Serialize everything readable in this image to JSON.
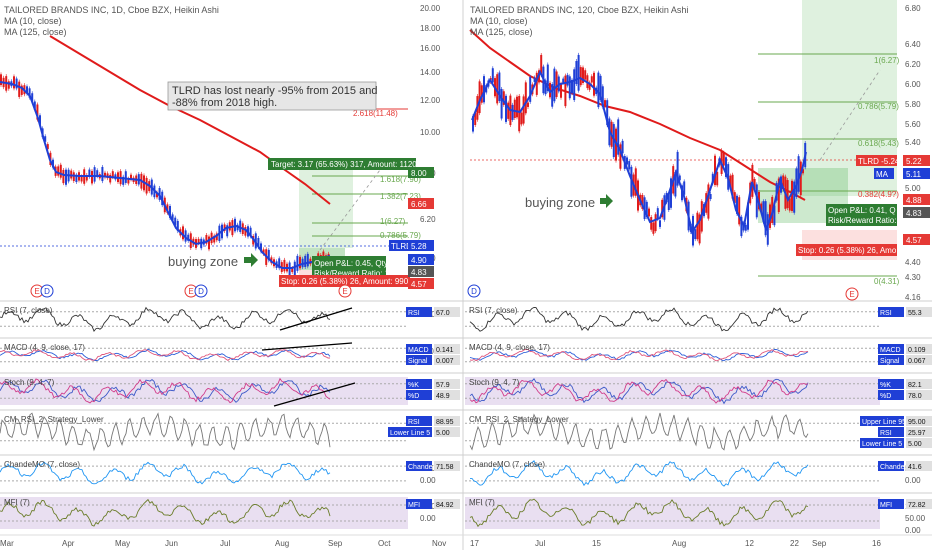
{
  "colors": {
    "ma_short": "#1f3fd6",
    "ma_long": "#e01b1b",
    "candle_up": "#1f3fd6",
    "candle_down": "#e01b1b",
    "target_zone": "#4caf50",
    "stop_zone": "#ef5350",
    "indicator_bg": "#e9dff1",
    "rsi_line": "#333333",
    "macd_line": "#2c5fd9",
    "signal_line": "#e0557a",
    "stoch_k": "#3c58c8",
    "stoch_d": "#d13b8a",
    "crsi_line": "#777777",
    "cmo_line": "#2196f3",
    "mfi_line": "#6b7d2a",
    "trend": "#000000",
    "label_green": "#2e7d32",
    "label_red": "#e53935",
    "label_blue": "#1f3fd6"
  },
  "left": {
    "title": "TAILORED BRANDS INC, 1D, Cboe BZX, Heikin Ashi",
    "legend": [
      "MA (10, close)",
      "MA (125, close)"
    ],
    "price_scale": [
      "20.00",
      "18.00",
      "16.00",
      "14.00",
      "12.00",
      "10.00",
      "8.00",
      "6.20",
      "4.20"
    ],
    "x_ticks": [
      "Mar",
      "Apr",
      "May",
      "Jun",
      "Jul",
      "Aug",
      "Sep",
      "Oct",
      "Nov"
    ],
    "annotation": "TLRD has lost nearly -95% from 2015 and -88% from 2018 high.",
    "buying_zone": "buying zone",
    "fib": [
      "2.618(11.48)",
      "1.618(7.90)",
      "1.382(7.23)",
      "1(6.27)",
      "0.786(5.79)"
    ],
    "target_label": "Target: 3.17 (65.63%) 317, Amount: 1120.4",
    "open_pl": "Open P&L: 0.45, Qty: 38",
    "rr": "Risk/Reward Ratio: 12.19",
    "stop_label": "Stop: 0.26 (5.38%) 26, Amount: 990.12",
    "price_tags": [
      {
        "text": "8.00",
        "color": "#2e7d32"
      },
      {
        "text": "6.66",
        "color": "#e53935"
      },
      {
        "text": "TLRD -59.86%",
        "color": "#1f3fd6"
      },
      {
        "text": "5.28",
        "color": "#1f3fd6"
      },
      {
        "text": "4.90",
        "color": "#1f3fd6"
      },
      {
        "text": "4.83",
        "color": "#555555"
      },
      {
        "text": "4.57",
        "color": "#e53935"
      }
    ],
    "panels": {
      "rsi": {
        "title": "RSI (7, close)",
        "scale": [
          "40.00"
        ],
        "tag": "RSI",
        "value": "67.0"
      },
      "macd": {
        "title": "MACD (4, 9, close, 17)",
        "scale": [
          "-1.000"
        ],
        "tags": [
          [
            "MACD",
            "0.141"
          ],
          [
            "Signal",
            "0.007"
          ]
        ]
      },
      "stoch": {
        "title": "Stoch (9, 4, 7)",
        "tags": [
          [
            "%K",
            "57.9"
          ],
          [
            "%D",
            "48.9"
          ]
        ]
      },
      "crsi": {
        "title": "CM_RSI_2_Strategy_Lower",
        "tags": [
          [
            "RSI",
            "88.95"
          ],
          [
            "Lower Line 5",
            "5.00"
          ]
        ]
      },
      "cmo": {
        "title": "ChandeMO (7, close)",
        "scale": [
          "50.00",
          "0.00"
        ],
        "tag": "ChandeMO",
        "value": "71.58"
      },
      "mfi": {
        "title": "MFI (7)",
        "scale": [
          "50.00",
          "0.00"
        ],
        "tag": "MFI",
        "value": "84.92"
      }
    }
  },
  "right": {
    "title": "TAILORED BRANDS INC, 120, Cboe BZX, Heikin Ashi",
    "legend": [
      "MA (10, close)",
      "MA (125, close)"
    ],
    "price_scale": [
      "6.80",
      "6.40",
      "6.20",
      "6.00",
      "5.80",
      "5.60",
      "5.40",
      "5.20",
      "5.00",
      "4.80",
      "4.60",
      "4.40",
      "4.30",
      "4.16"
    ],
    "x_ticks": [
      "17",
      "Jul",
      "15",
      "Aug",
      "12",
      "22",
      "Sep",
      "16"
    ],
    "buying_zone": "buying zone",
    "fib": [
      "1(6.27)",
      "0.786(5.79)",
      "0.618(5.43)",
      "0.382(4.9?)",
      "0(4.31)"
    ],
    "open_pl": "Open P&L: 0.41, Q",
    "rr": "Risk/Reward Ratio: 1",
    "stop_label": "Stop: 0.26 (5.38%) 26, Amo",
    "price_tags": [
      {
        "text": "TLRD -5.24%",
        "color": "#e53935"
      },
      {
        "text": "5.22",
        "color": "#e53935"
      },
      {
        "text": "MA",
        "color": "#1f3fd6"
      },
      {
        "text": "5.11",
        "color": "#1f3fd6"
      },
      {
        "text": "4.88",
        "color": "#e53935"
      },
      {
        "text": "4.83",
        "color": "#555555"
      },
      {
        "text": "4.57",
        "color": "#e53935"
      }
    ],
    "panels": {
      "rsi": {
        "title": "RSI (7, close)",
        "tag": "RSI",
        "value": "55.3"
      },
      "macd": {
        "title": "MACD (4, 9, close, 17)",
        "tags": [
          [
            "MACD",
            "0.109"
          ],
          [
            "Signal",
            "0.067"
          ]
        ]
      },
      "stoch": {
        "title": "Stoch (9, 4, 7)",
        "tags": [
          [
            "%K",
            "82.1"
          ],
          [
            "%D",
            "78.0"
          ]
        ]
      },
      "crsi": {
        "title": "CM_RSI_2_Strategy_Lower",
        "tags": [
          [
            "Upper Line 95",
            "95.00"
          ],
          [
            "RSI",
            "25.97"
          ],
          [
            "Lower Line 5",
            "5.00"
          ]
        ]
      },
      "cmo": {
        "title": "ChandeMO (7, close)",
        "scale": [
          "50.00",
          "0.00"
        ],
        "tag": "ChandeMO",
        "value": "41.6"
      },
      "mfi": {
        "title": "MFI (7)",
        "scale": [
          "100.00",
          "50.00",
          "0.00"
        ],
        "tag": "MFI",
        "value": "72.82"
      }
    }
  },
  "chart_data": [
    {
      "type": "line",
      "title": "TAILORED BRANDS INC, 1D, Cboe BZX, Heikin Ashi",
      "x": [
        "Mar",
        "Apr",
        "May",
        "Jun",
        "Jul",
        "Aug",
        "Sep"
      ],
      "series": [
        {
          "name": "MA (10, close)",
          "values": [
            13.0,
            8.0,
            7.8,
            5.4,
            6.0,
            4.6,
            5.0
          ]
        },
        {
          "name": "MA (125, close)",
          "values": [
            17.5,
            16.0,
            13.8,
            11.0,
            9.0,
            7.3,
            6.66
          ]
        }
      ],
      "ylim": [
        4.0,
        20.5
      ]
    },
    {
      "type": "line",
      "title": "TAILORED BRANDS INC, 120, Cboe BZX, Heikin Ashi",
      "x": [
        "17",
        "Jul",
        "15",
        "Aug",
        "12",
        "22",
        "Sep"
      ],
      "series": [
        {
          "name": "MA (10, close)",
          "values": [
            6.2,
            5.7,
            5.9,
            5.3,
            4.95,
            4.55,
            5.11
          ]
        },
        {
          "name": "MA (125, close)",
          "values": [
            6.4,
            5.9,
            5.6,
            5.4,
            5.2,
            5.0,
            4.88
          ]
        }
      ],
      "ylim": [
        4.1,
        6.9
      ]
    }
  ]
}
